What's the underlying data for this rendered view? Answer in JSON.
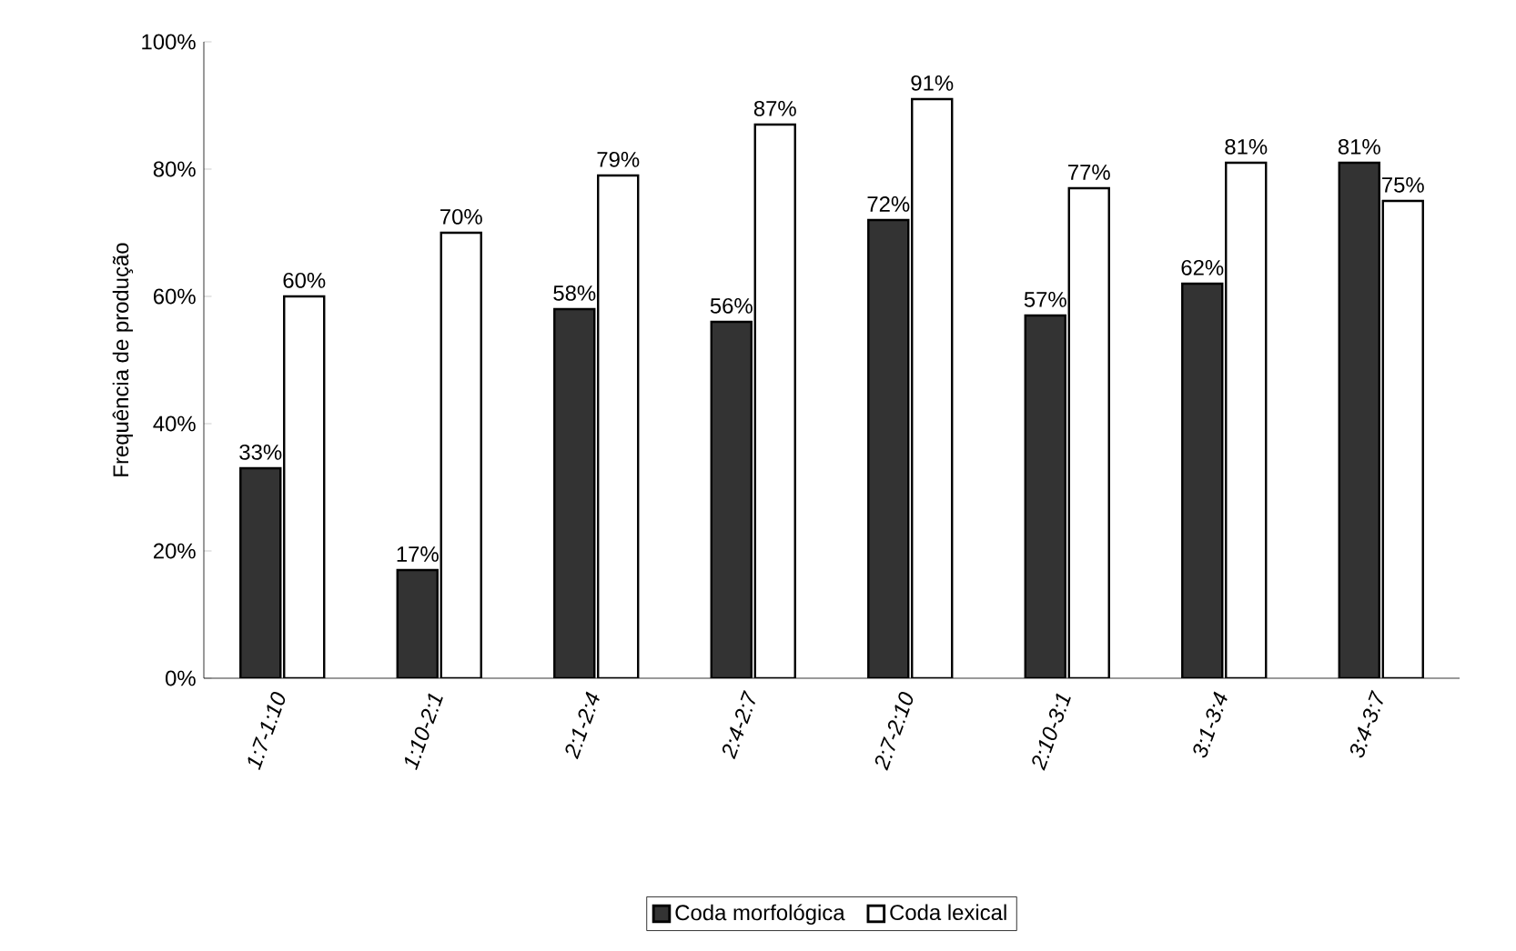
{
  "chart_data": {
    "type": "bar",
    "ylabel": "Frequência de produção",
    "categories": [
      "1:7-1:10",
      "1:10-2:1",
      "2:1-2:4",
      "2:4-2:7",
      "2:7-2:10",
      "2:10-3:1",
      "3:1-3:4",
      "3:4-3:7"
    ],
    "series": [
      {
        "name": "Coda morfológica",
        "color": "#333333",
        "values": [
          33,
          17,
          58,
          56,
          72,
          57,
          62,
          81
        ],
        "value_labels": [
          "33%",
          "17%",
          "58%",
          "56%",
          "72%",
          "57%",
          "62%",
          "81%"
        ]
      },
      {
        "name": "Coda lexical",
        "color": "#ffffff",
        "values": [
          60,
          70,
          79,
          87,
          91,
          77,
          81,
          75
        ],
        "value_labels": [
          "60%",
          "70%",
          "79%",
          "87%",
          "91%",
          "77%",
          "81%",
          "75%"
        ]
      }
    ],
    "ylim": [
      0,
      100
    ],
    "yticks": [
      {
        "value": 0,
        "label": "0%"
      },
      {
        "value": 20,
        "label": "20%"
      },
      {
        "value": 40,
        "label": "40%"
      },
      {
        "value": 60,
        "label": "60%"
      },
      {
        "value": 80,
        "label": "80%"
      },
      {
        "value": 100,
        "label": "100%"
      }
    ],
    "grid": false,
    "legend": "bottom"
  }
}
